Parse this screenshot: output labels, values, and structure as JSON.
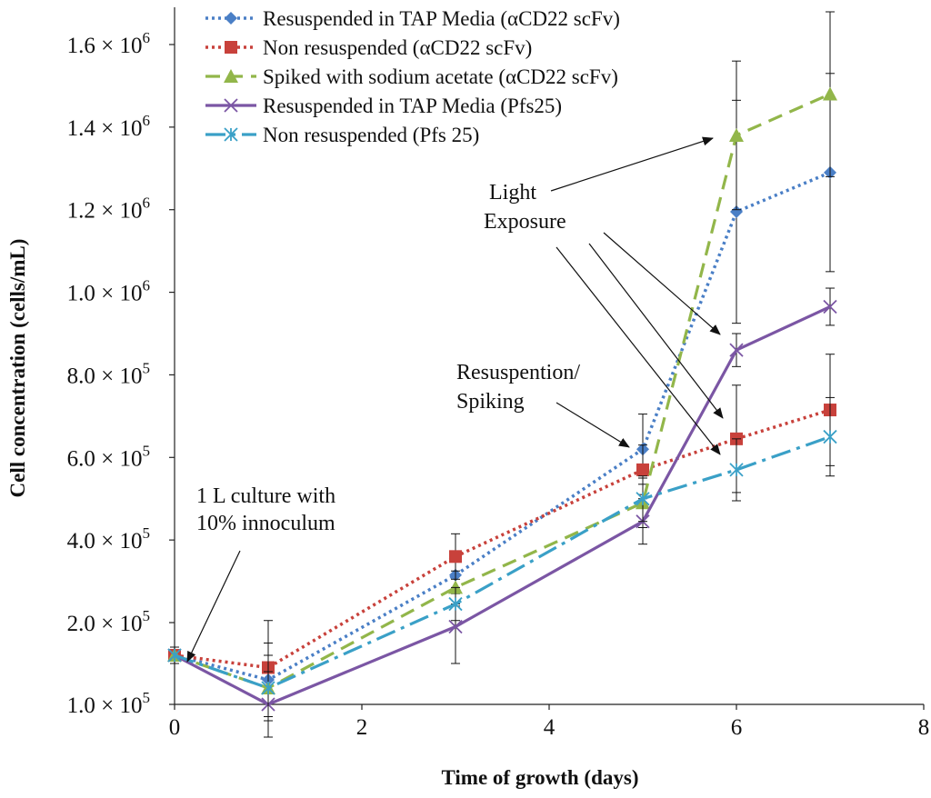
{
  "chart_data": {
    "type": "line",
    "xlabel": "Time of growth (days)",
    "ylabel": "Cell concentration (cells/mL)",
    "xlim": [
      0,
      8
    ],
    "ylim": [
      100000,
      1700000
    ],
    "x_ticks": [
      0,
      2,
      4,
      6,
      8
    ],
    "y_ticks": [
      {
        "value": 100000,
        "mantissa": "1.0",
        "exp": "5"
      },
      {
        "value": 200000,
        "mantissa": "2.0",
        "exp": "5"
      },
      {
        "value": 400000,
        "mantissa": "4.0",
        "exp": "5"
      },
      {
        "value": 600000,
        "mantissa": "6.0",
        "exp": "5"
      },
      {
        "value": 800000,
        "mantissa": "8.0",
        "exp": "5"
      },
      {
        "value": 1000000,
        "mantissa": "1.0",
        "exp": "6"
      },
      {
        "value": 1200000,
        "mantissa": "1.2",
        "exp": "6"
      },
      {
        "value": 1400000,
        "mantissa": "1.4",
        "exp": "6"
      },
      {
        "value": 1600000,
        "mantissa": "1.6",
        "exp": "6"
      }
    ],
    "times_sign": "×",
    "y_tick_base": "10",
    "legend_position": "top-left",
    "series": [
      {
        "name": "Resuspended in TAP Media (αCD22 scFv)",
        "color": "#4a7fc6",
        "dash": "dotted",
        "marker": "diamond",
        "x": [
          0,
          1,
          3,
          5,
          6,
          7
        ],
        "y": [
          160000,
          130000,
          315000,
          620000,
          1195000,
          1290000
        ],
        "err": [
          10000,
          45000,
          45000,
          85000,
          270000,
          240000
        ]
      },
      {
        "name": "Non resuspended (αCD22 scFv)",
        "color": "#c8413b",
        "dash": "dotted",
        "marker": "square",
        "x": [
          0,
          1,
          3,
          5,
          6,
          7
        ],
        "y": [
          160000,
          145000,
          360000,
          570000,
          645000,
          715000
        ],
        "err": [
          10000,
          60000,
          55000,
          60000,
          130000,
          135000
        ]
      },
      {
        "name": "Spiked with sodium acetate (αCD22 scFv)",
        "color": "#92b64a",
        "dash": "dashed",
        "marker": "triangle",
        "x": [
          0,
          1,
          3,
          5,
          6,
          7
        ],
        "y": [
          160000,
          120000,
          285000,
          490000,
          1380000,
          1480000
        ],
        "err": [
          10000,
          40000,
          40000,
          60000,
          180000,
          200000
        ]
      },
      {
        "name": "Resuspended in TAP Media (Pfs25)",
        "color": "#7b56a4",
        "dash": "solid",
        "marker": "x",
        "x": [
          0,
          1,
          3,
          5,
          6,
          7
        ],
        "y": [
          160000,
          100000,
          195000,
          445000,
          860000,
          965000
        ],
        "err": [
          10000,
          40000,
          45000,
          55000,
          40000,
          45000
        ]
      },
      {
        "name": "Non resuspended (Pfs 25)",
        "color": "#3aa0c7",
        "dash": "dashdot",
        "marker": "star",
        "x": [
          0,
          1,
          3,
          5,
          6,
          7
        ],
        "y": [
          160000,
          120000,
          245000,
          500000,
          570000,
          650000
        ],
        "err": [
          10000,
          40000,
          40000,
          55000,
          75000,
          95000
        ]
      }
    ],
    "annotations": [
      {
        "name": "annotation-culture",
        "lines": [
          "1 L culture with",
          "10% innoculum"
        ]
      },
      {
        "name": "annotation-resuspension",
        "lines": [
          "Resuspention/",
          "Spiking"
        ]
      },
      {
        "name": "annotation-light",
        "lines": [
          "Light",
          "Exposure"
        ]
      }
    ]
  }
}
